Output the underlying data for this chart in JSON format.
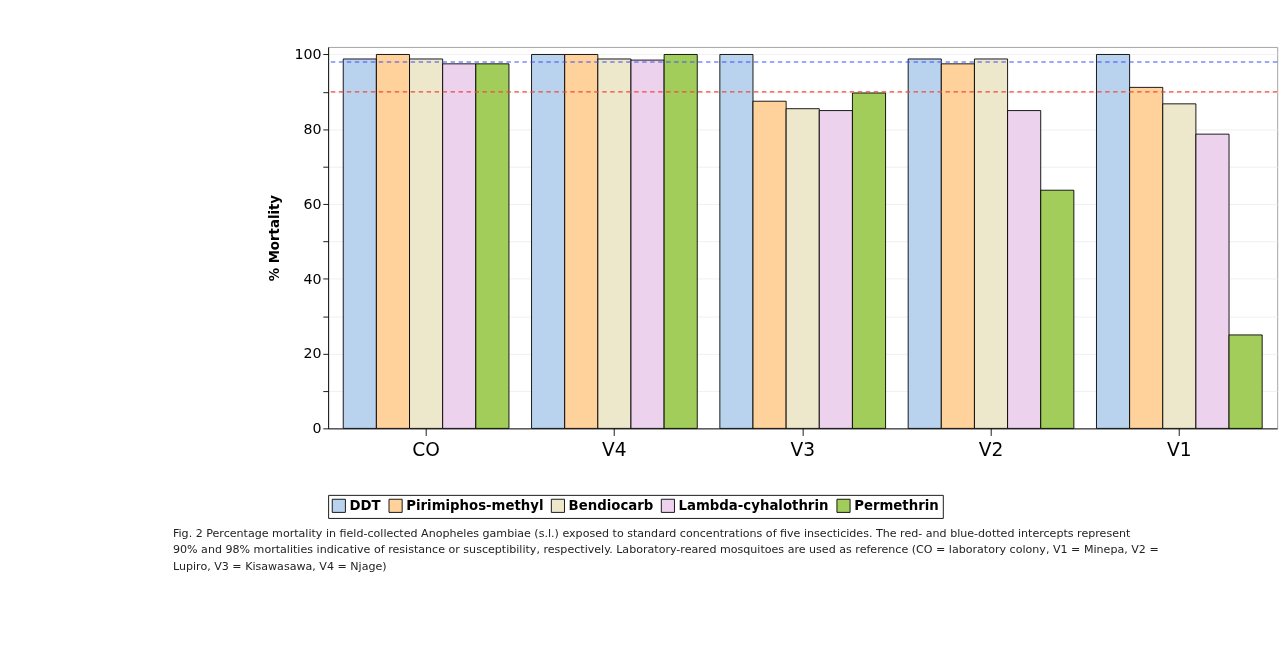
{
  "chart_data": {
    "type": "bar",
    "ylabel": "% Mortality",
    "categories": [
      "CO",
      "V4",
      "V3",
      "V2",
      "V1"
    ],
    "series": [
      {
        "name": "DDT",
        "color": "#b9d3ee",
        "values": [
          98.8,
          100,
          100,
          98.8,
          100
        ]
      },
      {
        "name": "Pirimiphos-methyl",
        "color": "#fed29a",
        "values": [
          100,
          100,
          87.5,
          97.5,
          91.2
        ]
      },
      {
        "name": "Bendiocarb",
        "color": "#ede7cb",
        "values": [
          98.8,
          98.8,
          85.5,
          98.8,
          86.8
        ]
      },
      {
        "name": "Lambda-cyhalothrin",
        "color": "#ecd2ed",
        "values": [
          97.5,
          98.5,
          85.0,
          85.0,
          78.7
        ]
      },
      {
        "name": "Permethrin",
        "color": "#a2cd5a",
        "values": [
          97.5,
          100,
          89.7,
          63.7,
          25.0
        ]
      }
    ],
    "ylim": [
      0,
      102
    ],
    "yticks": [
      0,
      {
        "value": 10,
        "label": null
      },
      20,
      {
        "value": 30,
        "label": null
      },
      40,
      {
        "value": 50,
        "label": null
      },
      60,
      {
        "value": 70,
        "label": null
      },
      80,
      {
        "value": 90,
        "label": null
      },
      100
    ],
    "grid": "y",
    "legend": "bottom",
    "ref_lines": [
      {
        "axis": "y",
        "value": 98,
        "color": "#3a4ef5",
        "line_style": "dashed"
      },
      {
        "axis": "y",
        "value": 90,
        "color": "#f04a3a",
        "line_style": "dashed"
      }
    ],
    "annotations": [
      "Fig. 2 Percentage mortality in field-collected Anopheles gambiae (s.l.) exposed to standard concentrations of five insecticides. The red- and blue-dotted intercepts represent 90% and 98% mortalities indicative of resistance or susceptibility, respectively. Laboratory-reared mosquitoes are used as reference (CO = laboratory colony, V1 = Minepa, V2 = Lupiro, V3 = Kisawasawa, V4 = Njage)"
    ]
  }
}
